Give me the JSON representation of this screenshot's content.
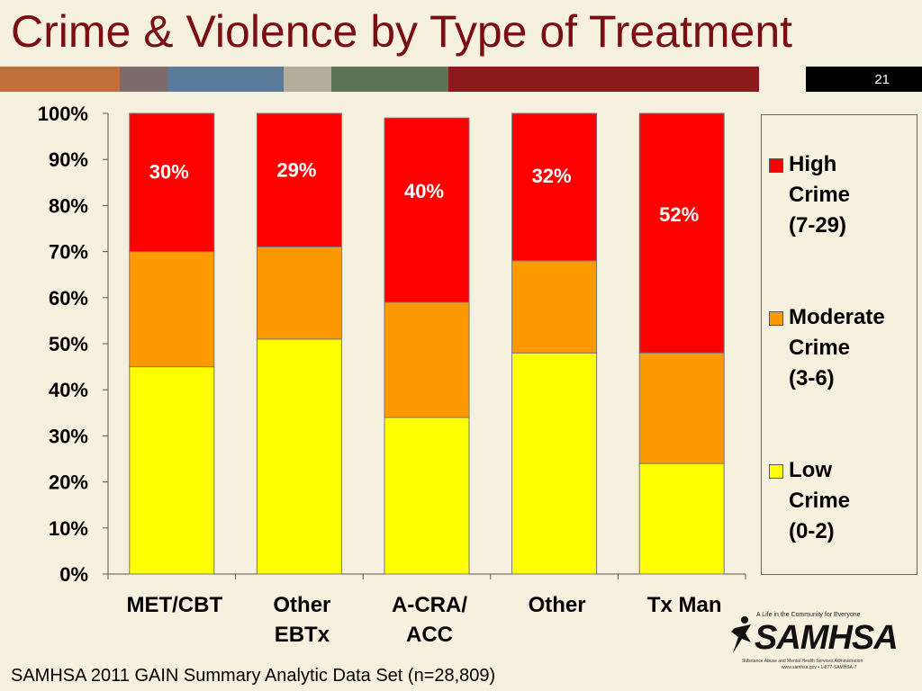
{
  "title": "Crime & Violence by Type of Treatment",
  "slide_number": "21",
  "band_colors": [
    "#c0703a",
    "#7d6b6c",
    "#5b7b9b",
    "#b5ab9a",
    "#5f7452",
    "#8a1a1b",
    "#f6f1df",
    "#000000"
  ],
  "series_colors": {
    "high": "#ff0000",
    "moderate": "#ff9900",
    "low": "#ffff00"
  },
  "chart_data": {
    "type": "bar",
    "stacked": true,
    "categories": [
      "MET/CBT",
      "Other\nEBTx",
      "A-CRA/\nACC",
      "Other",
      "Tx Man"
    ],
    "series": [
      {
        "name": "Low\nCrime\n(0-2)",
        "values": [
          45,
          51,
          34,
          48,
          24
        ]
      },
      {
        "name": "Moderate\nCrime\n(3-6)",
        "values": [
          25,
          20,
          25,
          20,
          24
        ]
      },
      {
        "name": "High\nCrime\n(7-29)",
        "values": [
          30,
          29,
          40,
          32,
          52
        ]
      }
    ],
    "data_labels": [
      "30%",
      "29%",
      "40%",
      "32%",
      "52%"
    ],
    "yticks": [
      "0%",
      "10%",
      "20%",
      "30%",
      "40%",
      "50%",
      "60%",
      "70%",
      "80%",
      "90%",
      "100%"
    ],
    "ylim": [
      0,
      100
    ],
    "legend": "right"
  },
  "logo": {
    "tagline": "A Life in the Community for Everyone",
    "name": "SAMHSA",
    "subtitle": "Substance Abuse and Mental Health Services Administration",
    "contact": "www.samhsa.gov • 1-877-SAMHSA-7"
  },
  "source": "SAMHSA 2011 GAIN Summary Analytic Data Set (n=28,809)"
}
